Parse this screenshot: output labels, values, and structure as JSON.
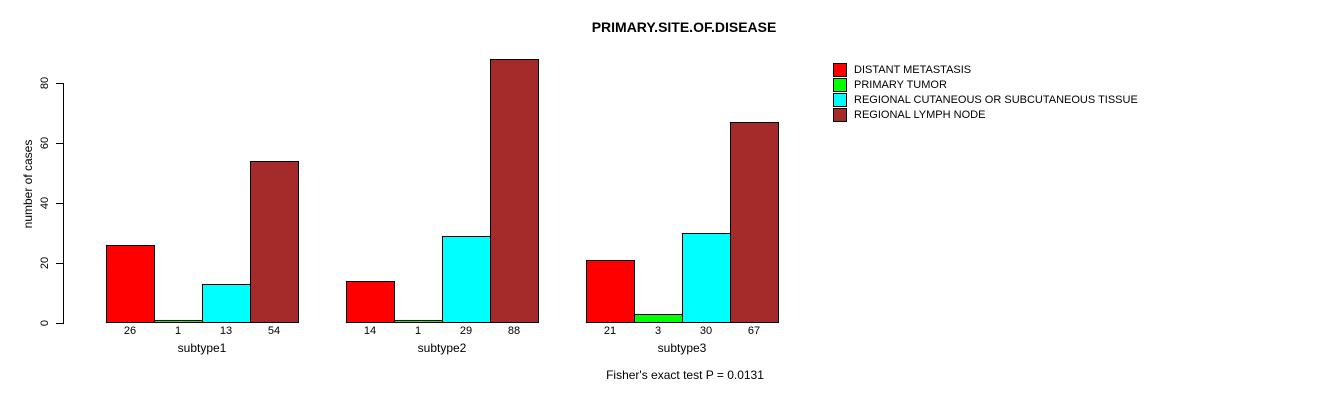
{
  "chart_data": {
    "type": "bar",
    "title": "PRIMARY.SITE.OF.DISEASE",
    "ylabel": "number of cases",
    "xlabel": "",
    "ylim": [
      0,
      80
    ],
    "yticks": [
      0,
      20,
      40,
      60,
      80
    ],
    "grid": false,
    "legend_position": "top-right",
    "bar_value_labels_shown": true,
    "categories": [
      "subtype1",
      "subtype2",
      "subtype3"
    ],
    "series": [
      {
        "name": "DISTANT METASTASIS",
        "color": "#FF0000",
        "values": [
          26,
          14,
          21
        ]
      },
      {
        "name": "PRIMARY TUMOR",
        "color": "#00FF00",
        "values": [
          1,
          1,
          3
        ]
      },
      {
        "name": "REGIONAL CUTANEOUS OR SUBCUTANEOUS TISSUE",
        "color": "#00FFFF",
        "values": [
          13,
          29,
          30
        ]
      },
      {
        "name": "REGIONAL LYMPH NODE",
        "color": "#A52A2A",
        "values": [
          54,
          88,
          67
        ]
      }
    ],
    "annotation": "Fisher's exact test P = 0.0131"
  },
  "colors": {
    "background": "#FFFFFF",
    "axis": "#000000",
    "text": "#000000",
    "bar_border": "#000000"
  }
}
